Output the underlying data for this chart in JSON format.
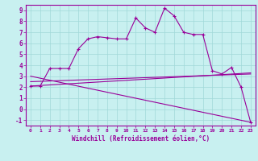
{
  "xlabel": "Windchill (Refroidissement éolien,°C)",
  "background_color": "#c8f0f0",
  "grid_color": "#a0d8d8",
  "line_color": "#990099",
  "xlim": [
    -0.5,
    23.5
  ],
  "ylim": [
    -1.5,
    9.5
  ],
  "xticks": [
    0,
    1,
    2,
    3,
    4,
    5,
    6,
    7,
    8,
    9,
    10,
    11,
    12,
    13,
    14,
    15,
    16,
    17,
    18,
    19,
    20,
    21,
    22,
    23
  ],
  "yticks": [
    -1,
    0,
    1,
    2,
    3,
    4,
    5,
    6,
    7,
    8,
    9
  ],
  "main_x": [
    0,
    1,
    2,
    3,
    4,
    5,
    6,
    7,
    8,
    9,
    10,
    11,
    12,
    13,
    14,
    15,
    16,
    17,
    18,
    19,
    20,
    21,
    22,
    23
  ],
  "main_y": [
    2.1,
    2.1,
    3.7,
    3.7,
    3.7,
    5.5,
    6.4,
    6.6,
    6.5,
    6.4,
    6.4,
    8.3,
    7.4,
    7.0,
    9.2,
    8.5,
    7.0,
    6.8,
    6.8,
    3.5,
    3.2,
    3.8,
    2.0,
    -1.2
  ],
  "line2_x": [
    0,
    23
  ],
  "line2_y": [
    2.1,
    3.3
  ],
  "line3_x": [
    0,
    23
  ],
  "line3_y": [
    2.5,
    3.2
  ],
  "line4_x": [
    0,
    23
  ],
  "line4_y": [
    3.0,
    -1.2
  ]
}
